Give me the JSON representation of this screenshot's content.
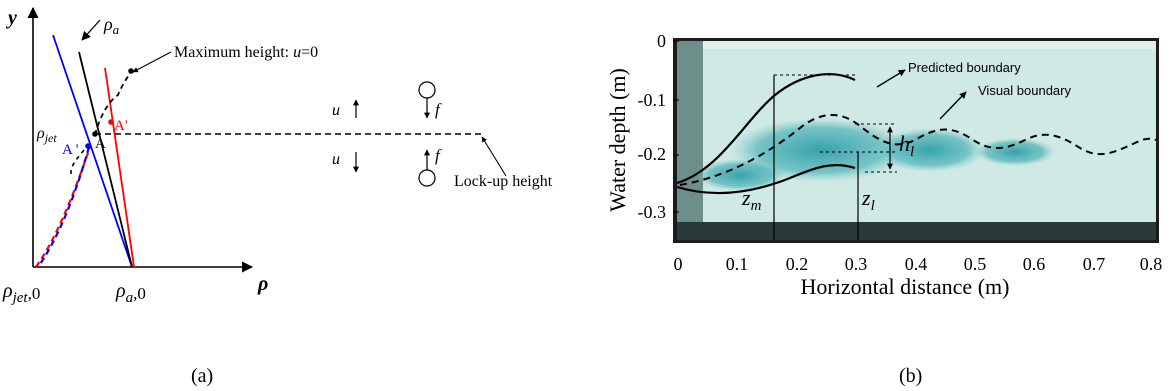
{
  "panel_a": {
    "axis_y": "y",
    "axis_x": "ρ",
    "rho_a": "ρ",
    "rho_a_sub": "a",
    "max_height": "Maximum height: ",
    "max_height_u": "u",
    "max_height_eq": "=0",
    "rho_jet": "ρ",
    "rho_jet_sub": "jet",
    "point_a": "A",
    "point_a_prime_blue": "A '",
    "point_a_prime_red": "A'",
    "u_up": "u",
    "u_down": "u",
    "f_up": "f",
    "f_down": "f",
    "lockup": "Lock-up height",
    "rho_jet0": "ρ",
    "rho_jet0_sub": "jet",
    "rho_jet0_tail": ",0",
    "rho_a0": "ρ",
    "rho_a0_sub": "a",
    "rho_a0_tail": ",0",
    "caption": "(a)",
    "colors": {
      "blue": "#0000ff",
      "red": "#ff0000",
      "black": "#000000"
    }
  },
  "panel_b": {
    "ylabel": "Water depth (m)",
    "xlabel": "Horizontal distance (m)",
    "yticks": [
      "0",
      "-0.1",
      "-0.2",
      "-0.3"
    ],
    "xticks": [
      "0",
      "0.1",
      "0.2",
      "0.3",
      "0.4",
      "0.5",
      "0.6",
      "0.7",
      "0.8"
    ],
    "predicted": "Predicted boundary",
    "visual": "Visual boundary",
    "h_l": "h",
    "h_l_sub": "l",
    "z_m": "z",
    "z_m_sub": "m",
    "z_l": "z",
    "z_l_sub": "l",
    "caption": "(b)",
    "colors": {
      "water": "#c8e6e2",
      "plume": "#3fa9b0",
      "frame": "#1a1a1a"
    }
  }
}
